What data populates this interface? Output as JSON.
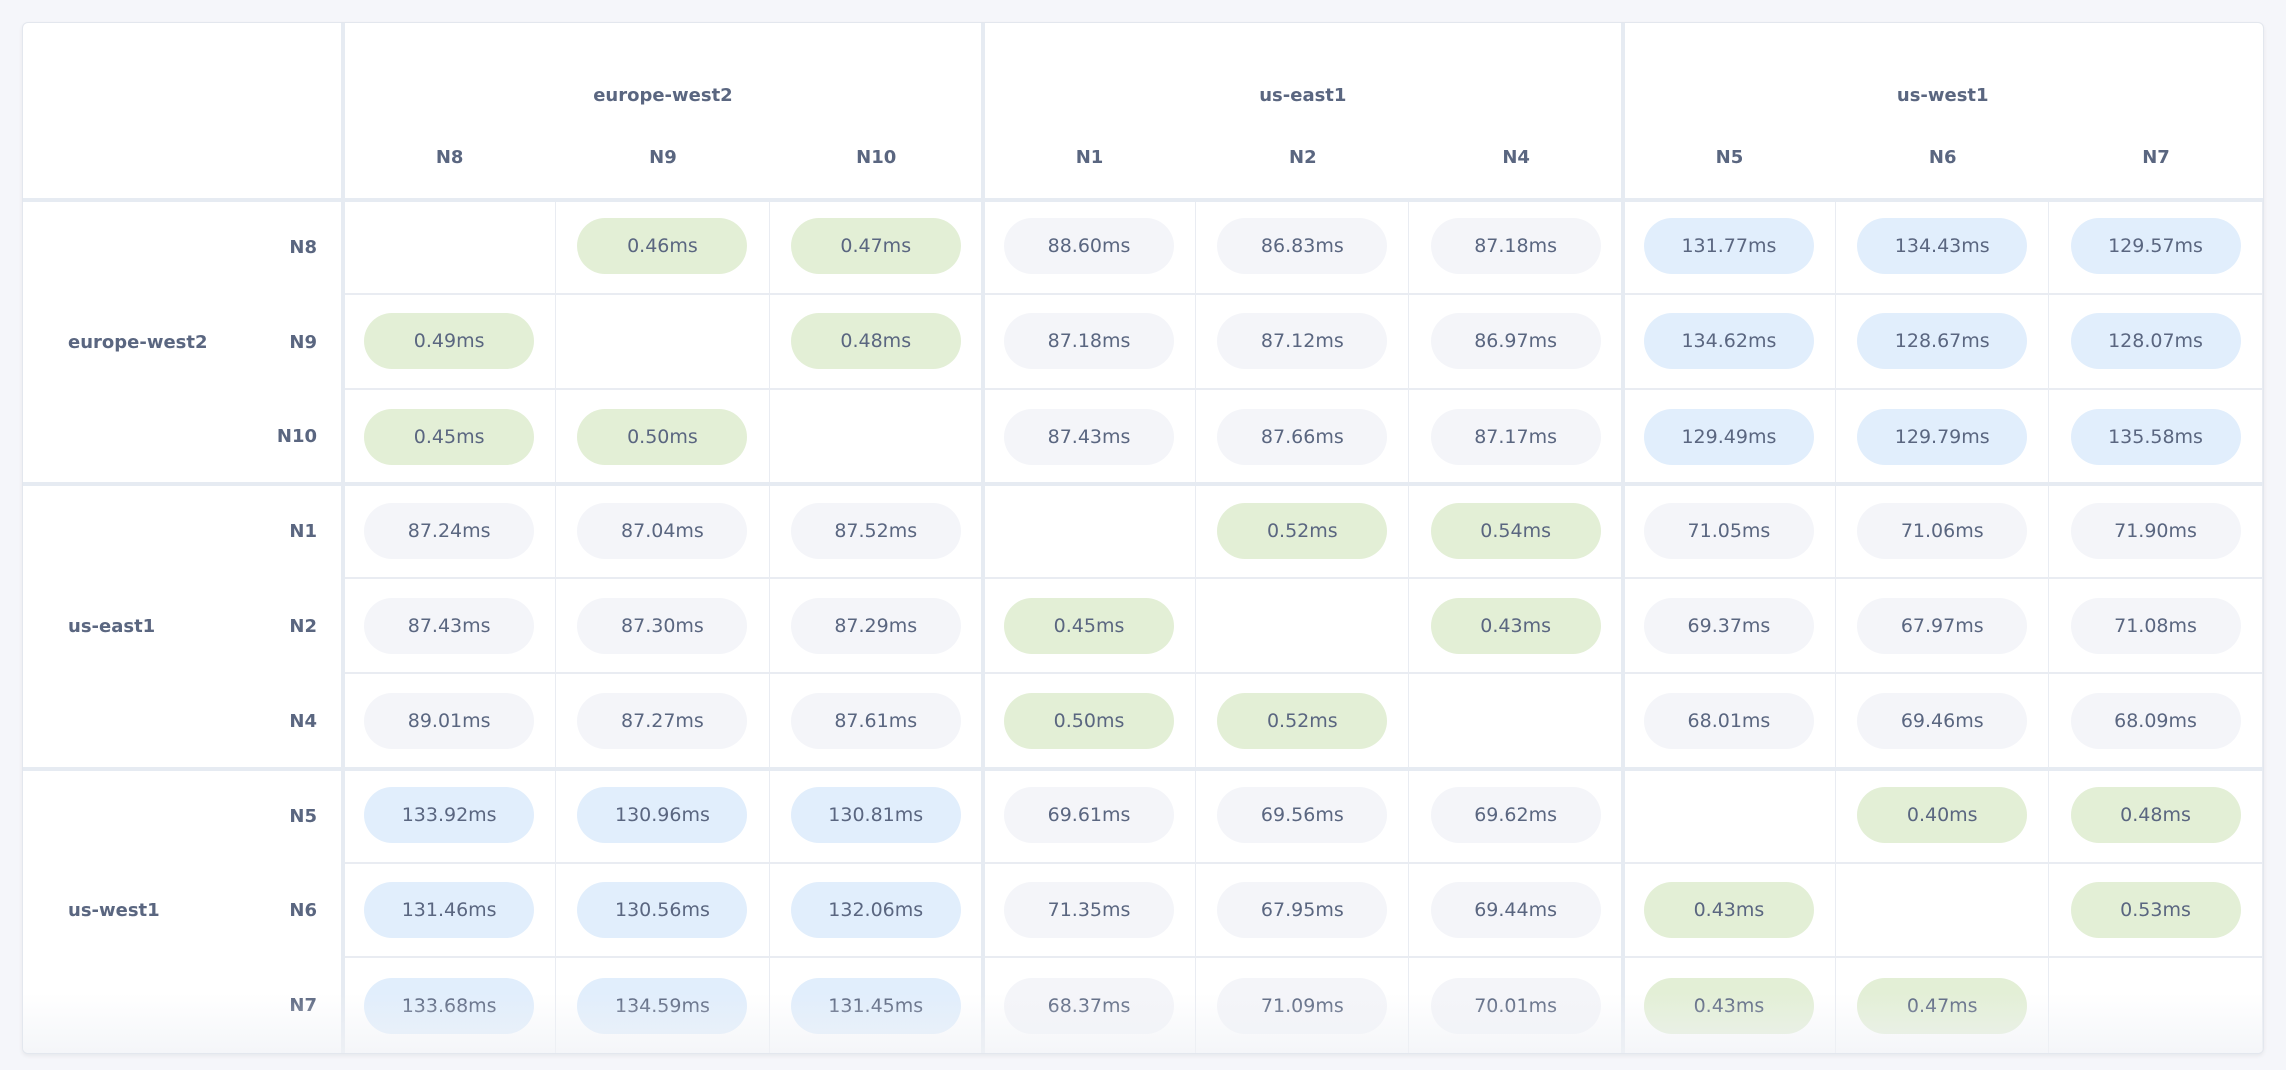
{
  "colors": {
    "local": "#e3efd6",
    "medium": "#f4f5f9",
    "far": "#e1eefc",
    "text": "#5a6680"
  },
  "regions": [
    {
      "name": "europe-west2",
      "nodes": [
        "N8",
        "N9",
        "N10"
      ]
    },
    {
      "name": "us-east1",
      "nodes": [
        "N1",
        "N2",
        "N4"
      ]
    },
    {
      "name": "us-west1",
      "nodes": [
        "N5",
        "N6",
        "N7"
      ]
    }
  ],
  "rows": [
    {
      "region": "europe-west2",
      "node": "N8",
      "cells": [
        null,
        {
          "value": "0.46ms",
          "tier": "local"
        },
        {
          "value": "0.47ms",
          "tier": "local"
        },
        {
          "value": "88.60ms",
          "tier": "medium"
        },
        {
          "value": "86.83ms",
          "tier": "medium"
        },
        {
          "value": "87.18ms",
          "tier": "medium"
        },
        {
          "value": "131.77ms",
          "tier": "far"
        },
        {
          "value": "134.43ms",
          "tier": "far"
        },
        {
          "value": "129.57ms",
          "tier": "far"
        }
      ]
    },
    {
      "region": "europe-west2",
      "node": "N9",
      "cells": [
        {
          "value": "0.49ms",
          "tier": "local"
        },
        null,
        {
          "value": "0.48ms",
          "tier": "local"
        },
        {
          "value": "87.18ms",
          "tier": "medium"
        },
        {
          "value": "87.12ms",
          "tier": "medium"
        },
        {
          "value": "86.97ms",
          "tier": "medium"
        },
        {
          "value": "134.62ms",
          "tier": "far"
        },
        {
          "value": "128.67ms",
          "tier": "far"
        },
        {
          "value": "128.07ms",
          "tier": "far"
        }
      ]
    },
    {
      "region": "europe-west2",
      "node": "N10",
      "cells": [
        {
          "value": "0.45ms",
          "tier": "local"
        },
        {
          "value": "0.50ms",
          "tier": "local"
        },
        null,
        {
          "value": "87.43ms",
          "tier": "medium"
        },
        {
          "value": "87.66ms",
          "tier": "medium"
        },
        {
          "value": "87.17ms",
          "tier": "medium"
        },
        {
          "value": "129.49ms",
          "tier": "far"
        },
        {
          "value": "129.79ms",
          "tier": "far"
        },
        {
          "value": "135.58ms",
          "tier": "far"
        }
      ]
    },
    {
      "region": "us-east1",
      "node": "N1",
      "cells": [
        {
          "value": "87.24ms",
          "tier": "medium"
        },
        {
          "value": "87.04ms",
          "tier": "medium"
        },
        {
          "value": "87.52ms",
          "tier": "medium"
        },
        null,
        {
          "value": "0.52ms",
          "tier": "local"
        },
        {
          "value": "0.54ms",
          "tier": "local"
        },
        {
          "value": "71.05ms",
          "tier": "medium"
        },
        {
          "value": "71.06ms",
          "tier": "medium"
        },
        {
          "value": "71.90ms",
          "tier": "medium"
        }
      ]
    },
    {
      "region": "us-east1",
      "node": "N2",
      "cells": [
        {
          "value": "87.43ms",
          "tier": "medium"
        },
        {
          "value": "87.30ms",
          "tier": "medium"
        },
        {
          "value": "87.29ms",
          "tier": "medium"
        },
        {
          "value": "0.45ms",
          "tier": "local"
        },
        null,
        {
          "value": "0.43ms",
          "tier": "local"
        },
        {
          "value": "69.37ms",
          "tier": "medium"
        },
        {
          "value": "67.97ms",
          "tier": "medium"
        },
        {
          "value": "71.08ms",
          "tier": "medium"
        }
      ]
    },
    {
      "region": "us-east1",
      "node": "N4",
      "cells": [
        {
          "value": "89.01ms",
          "tier": "medium"
        },
        {
          "value": "87.27ms",
          "tier": "medium"
        },
        {
          "value": "87.61ms",
          "tier": "medium"
        },
        {
          "value": "0.50ms",
          "tier": "local"
        },
        {
          "value": "0.52ms",
          "tier": "local"
        },
        null,
        {
          "value": "68.01ms",
          "tier": "medium"
        },
        {
          "value": "69.46ms",
          "tier": "medium"
        },
        {
          "value": "68.09ms",
          "tier": "medium"
        }
      ]
    },
    {
      "region": "us-west1",
      "node": "N5",
      "cells": [
        {
          "value": "133.92ms",
          "tier": "far"
        },
        {
          "value": "130.96ms",
          "tier": "far"
        },
        {
          "value": "130.81ms",
          "tier": "far"
        },
        {
          "value": "69.61ms",
          "tier": "medium"
        },
        {
          "value": "69.56ms",
          "tier": "medium"
        },
        {
          "value": "69.62ms",
          "tier": "medium"
        },
        null,
        {
          "value": "0.40ms",
          "tier": "local"
        },
        {
          "value": "0.48ms",
          "tier": "local"
        }
      ]
    },
    {
      "region": "us-west1",
      "node": "N6",
      "cells": [
        {
          "value": "131.46ms",
          "tier": "far"
        },
        {
          "value": "130.56ms",
          "tier": "far"
        },
        {
          "value": "132.06ms",
          "tier": "far"
        },
        {
          "value": "71.35ms",
          "tier": "medium"
        },
        {
          "value": "67.95ms",
          "tier": "medium"
        },
        {
          "value": "69.44ms",
          "tier": "medium"
        },
        {
          "value": "0.43ms",
          "tier": "local"
        },
        null,
        {
          "value": "0.53ms",
          "tier": "local"
        }
      ]
    },
    {
      "region": "us-west1",
      "node": "N7",
      "cells": [
        {
          "value": "133.68ms",
          "tier": "far"
        },
        {
          "value": "134.59ms",
          "tier": "far"
        },
        {
          "value": "131.45ms",
          "tier": "far"
        },
        {
          "value": "68.37ms",
          "tier": "medium"
        },
        {
          "value": "71.09ms",
          "tier": "medium"
        },
        {
          "value": "70.01ms",
          "tier": "medium"
        },
        {
          "value": "0.43ms",
          "tier": "local"
        },
        {
          "value": "0.47ms",
          "tier": "local"
        },
        null
      ]
    }
  ]
}
